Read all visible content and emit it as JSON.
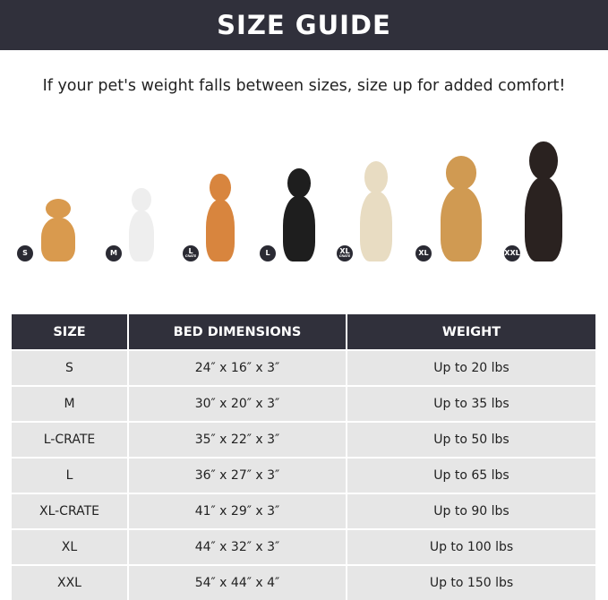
{
  "title": "SIZE GUIDE",
  "subtitle": "If your pet's weight falls between sizes, size up for added comfort!",
  "dogs": [
    {
      "badge": "S",
      "sub": "",
      "color": "#d99a4e"
    },
    {
      "badge": "M",
      "sub": "",
      "color": "#eeeeee"
    },
    {
      "badge": "L",
      "sub": "CRATE",
      "color": "#d8853e"
    },
    {
      "badge": "L",
      "sub": "",
      "color": "#1e1e1e"
    },
    {
      "badge": "XL",
      "sub": "CRATE",
      "color": "#e8dcc2"
    },
    {
      "badge": "XL",
      "sub": "",
      "color": "#d09a52"
    },
    {
      "badge": "XXL",
      "sub": "",
      "color": "#2a2220"
    }
  ],
  "table": {
    "headers": [
      "SIZE",
      "BED DIMENSIONS",
      "WEIGHT"
    ],
    "rows": [
      [
        "S",
        "24″ x 16″ x 3″",
        "Up to 20 lbs"
      ],
      [
        "M",
        "30″ x 20″ x 3″",
        "Up to 35 lbs"
      ],
      [
        "L-CRATE",
        "35″ x 22″ x 3″",
        "Up to 50 lbs"
      ],
      [
        "L",
        "36″ x 27″ x 3″",
        "Up to 65 lbs"
      ],
      [
        "XL-CRATE",
        "41″ x 29″ x 3″",
        "Up to 90 lbs"
      ],
      [
        "XL",
        "44″ x 32″ x 3″",
        "Up to 100 lbs"
      ],
      [
        "XXL",
        "54″ x 44″ x 4″",
        "Up to 150 lbs"
      ]
    ]
  }
}
